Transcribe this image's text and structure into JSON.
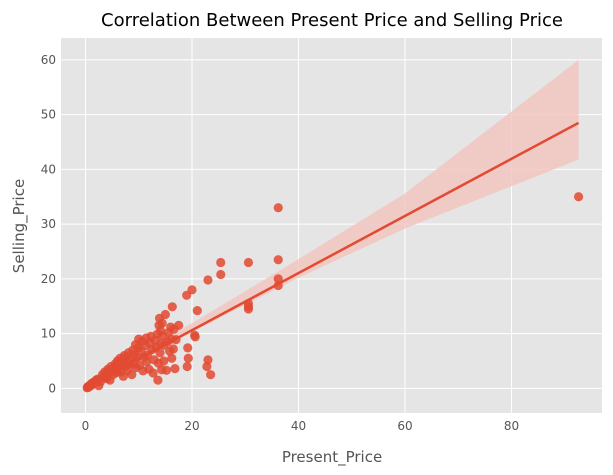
{
  "chart_data": {
    "type": "scatter",
    "title": "Correlation Between Present Price and Selling Price",
    "xlabel": "Present_Price",
    "ylabel": "Selling_Price",
    "xlim": [
      -4.6,
      97.0
    ],
    "ylim": [
      -4.5,
      64.0
    ],
    "xticks": [
      0,
      20,
      40,
      60,
      80
    ],
    "yticks": [
      0,
      10,
      20,
      30,
      40,
      50,
      60
    ],
    "grid": true,
    "colors": {
      "background": "#e5e5e5",
      "points": "#e24a33",
      "line": "#e24a33",
      "band": "#f2c6bf"
    },
    "regression": {
      "x": [
        0.32,
        92.6
      ],
      "y": [
        0.35,
        48.5
      ],
      "ci_upper": [
        [
          0.32,
          0.85
        ],
        [
          20,
          11.9
        ],
        [
          40,
          23.6
        ],
        [
          60,
          35.6
        ],
        [
          92.6,
          60.0
        ]
      ],
      "ci_lower": [
        [
          0.32,
          -0.1
        ],
        [
          20,
          10.3
        ],
        [
          40,
          20.2
        ],
        [
          60,
          29.2
        ],
        [
          92.6,
          41.8
        ]
      ]
    },
    "points": [
      [
        0.32,
        0.1
      ],
      [
        0.4,
        0.25
      ],
      [
        0.5,
        0.3
      ],
      [
        0.55,
        0.2
      ],
      [
        0.6,
        0.4
      ],
      [
        0.7,
        0.35
      ],
      [
        0.75,
        0.5
      ],
      [
        0.8,
        0.45
      ],
      [
        0.9,
        0.6
      ],
      [
        1.0,
        0.5
      ],
      [
        1.05,
        0.75
      ],
      [
        1.1,
        0.6
      ],
      [
        1.2,
        0.9
      ],
      [
        1.3,
        0.8
      ],
      [
        1.4,
        1.0
      ],
      [
        1.5,
        1.1
      ],
      [
        1.6,
        0.9
      ],
      [
        1.8,
        1.2
      ],
      [
        2.0,
        1.5
      ],
      [
        2.2,
        1.3
      ],
      [
        2.3,
        1.7
      ],
      [
        2.5,
        0.5
      ],
      [
        2.8,
        1.2
      ],
      [
        3.2,
        2.5
      ],
      [
        3.4,
        2.0
      ],
      [
        3.6,
        3.0
      ],
      [
        3.8,
        2.2
      ],
      [
        4.0,
        1.8
      ],
      [
        4.2,
        3.5
      ],
      [
        4.4,
        2.8
      ],
      [
        4.6,
        1.5
      ],
      [
        4.8,
        4.0
      ],
      [
        5.0,
        3.2
      ],
      [
        5.2,
        2.5
      ],
      [
        5.4,
        3.8
      ],
      [
        5.6,
        4.5
      ],
      [
        5.8,
        2.9
      ],
      [
        6.0,
        5.0
      ],
      [
        6.1,
        3.5
      ],
      [
        6.3,
        4.2
      ],
      [
        6.5,
        5.5
      ],
      [
        6.6,
        3.0
      ],
      [
        6.8,
        4.8
      ],
      [
        7.0,
        5.2
      ],
      [
        7.1,
        2.2
      ],
      [
        7.3,
        6.0
      ],
      [
        7.5,
        4.0
      ],
      [
        7.7,
        5.8
      ],
      [
        7.9,
        3.3
      ],
      [
        8.1,
        6.5
      ],
      [
        8.3,
        4.6
      ],
      [
        8.5,
        5.3
      ],
      [
        8.7,
        2.5
      ],
      [
        8.9,
        7.0
      ],
      [
        9.0,
        4.4
      ],
      [
        9.2,
        6.2
      ],
      [
        9.4,
        8.0
      ],
      [
        9.5,
        3.8
      ],
      [
        9.7,
        5.6
      ],
      [
        9.9,
        7.4
      ],
      [
        10.0,
        9.0
      ],
      [
        10.2,
        4.2
      ],
      [
        10.4,
        6.8
      ],
      [
        10.6,
        8.6
      ],
      [
        10.8,
        3.2
      ],
      [
        11.0,
        5.7
      ],
      [
        11.2,
        7.8
      ],
      [
        11.4,
        9.2
      ],
      [
        11.5,
        4.9
      ],
      [
        11.7,
        6.1
      ],
      [
        11.9,
        3.5
      ],
      [
        12.1,
        8.3
      ],
      [
        12.3,
        9.5
      ],
      [
        12.5,
        7.1
      ],
      [
        12.7,
        2.8
      ],
      [
        12.9,
        5.2
      ],
      [
        13.1,
        8.8
      ],
      [
        13.3,
        7.5
      ],
      [
        13.5,
        9.9
      ],
      [
        13.6,
        1.5
      ],
      [
        13.7,
        4.6
      ],
      [
        13.8,
        11.5
      ],
      [
        13.9,
        12.8
      ],
      [
        14.0,
        6.5
      ],
      [
        14.1,
        10.5
      ],
      [
        14.2,
        8.2
      ],
      [
        14.3,
        3.4
      ],
      [
        14.4,
        11.9
      ],
      [
        14.5,
        9.6
      ],
      [
        14.7,
        5.0
      ],
      [
        14.8,
        7.9
      ],
      [
        15.0,
        13.5
      ],
      [
        15.2,
        3.3
      ],
      [
        15.4,
        8.5
      ],
      [
        15.6,
        10.2
      ],
      [
        15.8,
        6.8
      ],
      [
        16.0,
        11.2
      ],
      [
        16.1,
        9.0
      ],
      [
        16.2,
        5.5
      ],
      [
        16.3,
        14.9
      ],
      [
        16.5,
        7.2
      ],
      [
        16.6,
        10.8
      ],
      [
        16.8,
        3.6
      ],
      [
        17.0,
        8.9
      ],
      [
        17.5,
        11.5
      ],
      [
        19.0,
        17.0
      ],
      [
        19.1,
        4.0
      ],
      [
        19.2,
        7.4
      ],
      [
        19.3,
        5.5
      ],
      [
        20.0,
        18.0
      ],
      [
        20.5,
        9.7
      ],
      [
        20.6,
        9.4
      ],
      [
        21.0,
        14.2
      ],
      [
        22.8,
        4.0
      ],
      [
        23.0,
        5.2
      ],
      [
        23.0,
        19.8
      ],
      [
        23.5,
        2.5
      ],
      [
        25.4,
        20.8
      ],
      [
        25.4,
        23.0
      ],
      [
        30.6,
        23.0
      ],
      [
        30.6,
        15.5
      ],
      [
        30.6,
        14.5
      ],
      [
        30.6,
        14.9
      ],
      [
        36.2,
        33.0
      ],
      [
        36.2,
        23.5
      ],
      [
        36.2,
        20.0
      ],
      [
        36.2,
        18.8
      ],
      [
        92.6,
        35.0
      ]
    ]
  }
}
